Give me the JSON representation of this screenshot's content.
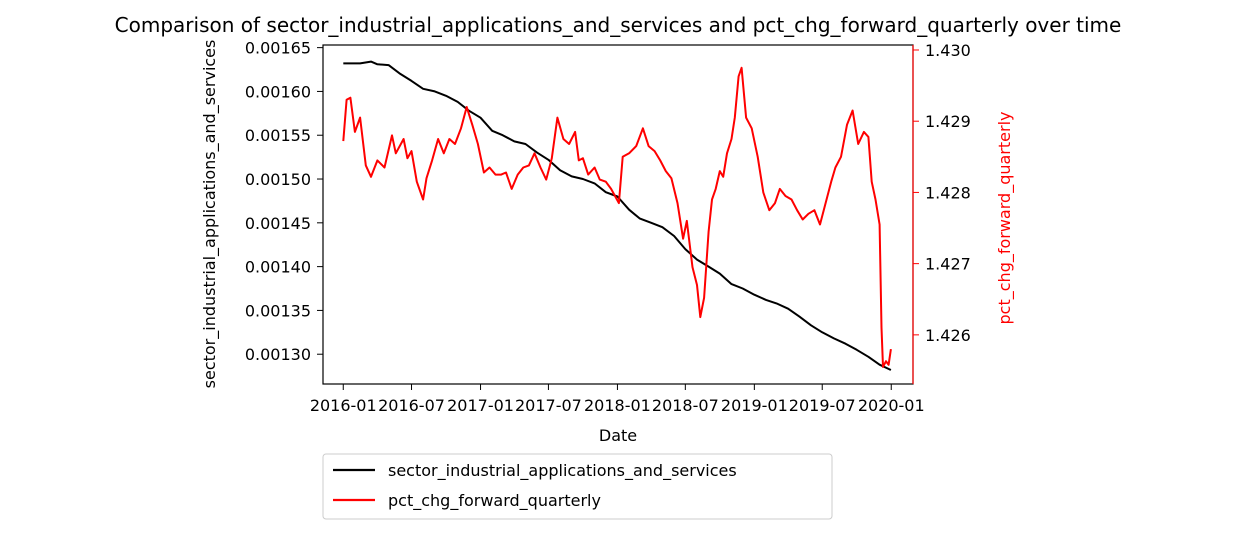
{
  "chart_data": {
    "type": "line",
    "title": "Comparison of sector_industrial_applications_and_services and pct_chg_forward_quarterly over time",
    "xlabel": "Date",
    "x_ticks": [
      "2016-01",
      "2016-07",
      "2017-01",
      "2017-07",
      "2018-01",
      "2018-07",
      "2019-01",
      "2019-07",
      "2020-01"
    ],
    "xlim": [
      "2015-11-08",
      "2020-02-28"
    ],
    "y_left": {
      "label": "sector_industrial_applications_and_services",
      "color": "#000000",
      "ylim": [
        0.001266,
        0.001653
      ],
      "ticks": [
        "0.00130",
        "0.00135",
        "0.00140",
        "0.00145",
        "0.00150",
        "0.00155",
        "0.00160",
        "0.00165"
      ]
    },
    "y_right": {
      "label": "pct_chg_forward_quarterly",
      "color": "#ff0000",
      "ylim": [
        1.42531,
        1.43007
      ],
      "ticks": [
        "1.426",
        "1.427",
        "1.428",
        "1.429",
        "1.430"
      ]
    },
    "legend": {
      "placement": "below-left"
    },
    "series": [
      {
        "name": "sector_industrial_applications_and_services",
        "axis": "left",
        "color": "#000000",
        "points": [
          [
            "2016-01-01",
            0.001632
          ],
          [
            "2016-02-15",
            0.001632
          ],
          [
            "2016-03-15",
            0.001634
          ],
          [
            "2016-04-01",
            0.001631
          ],
          [
            "2016-05-01",
            0.00163
          ],
          [
            "2016-06-01",
            0.00162
          ],
          [
            "2016-07-01",
            0.001612
          ],
          [
            "2016-08-01",
            0.001603
          ],
          [
            "2016-09-01",
            0.0016
          ],
          [
            "2016-10-01",
            0.001595
          ],
          [
            "2016-11-01",
            0.001588
          ],
          [
            "2016-12-01",
            0.001578
          ],
          [
            "2017-01-01",
            0.00157
          ],
          [
            "2017-02-01",
            0.001555
          ],
          [
            "2017-03-01",
            0.00155
          ],
          [
            "2017-04-01",
            0.001543
          ],
          [
            "2017-05-01",
            0.00154
          ],
          [
            "2017-06-01",
            0.00153
          ],
          [
            "2017-07-01",
            0.001522
          ],
          [
            "2017-08-01",
            0.00151
          ],
          [
            "2017-09-01",
            0.001503
          ],
          [
            "2017-10-01",
            0.0015
          ],
          [
            "2017-11-01",
            0.001495
          ],
          [
            "2017-12-01",
            0.001485
          ],
          [
            "2018-01-01",
            0.00148
          ],
          [
            "2018-02-01",
            0.001465
          ],
          [
            "2018-03-01",
            0.001455
          ],
          [
            "2018-04-01",
            0.00145
          ],
          [
            "2018-05-01",
            0.001445
          ],
          [
            "2018-06-01",
            0.001435
          ],
          [
            "2018-07-01",
            0.00142
          ],
          [
            "2018-08-01",
            0.001408
          ],
          [
            "2018-09-01",
            0.0014
          ],
          [
            "2018-10-01",
            0.001392
          ],
          [
            "2018-11-01",
            0.00138
          ],
          [
            "2018-12-01",
            0.001375
          ],
          [
            "2019-01-01",
            0.001368
          ],
          [
            "2019-02-01",
            0.001362
          ],
          [
            "2019-03-01",
            0.001358
          ],
          [
            "2019-04-01",
            0.001352
          ],
          [
            "2019-05-01",
            0.001343
          ],
          [
            "2019-06-01",
            0.001333
          ],
          [
            "2019-07-01",
            0.001325
          ],
          [
            "2019-08-01",
            0.001318
          ],
          [
            "2019-09-01",
            0.001312
          ],
          [
            "2019-10-01",
            0.001305
          ],
          [
            "2019-11-01",
            0.001297
          ],
          [
            "2019-12-01",
            0.001288
          ],
          [
            "2019-12-31",
            0.001282
          ]
        ]
      },
      {
        "name": "pct_chg_forward_quarterly",
        "axis": "right",
        "color": "#ff0000",
        "points": [
          [
            "2016-01-01",
            1.42872
          ],
          [
            "2016-01-10",
            1.4293
          ],
          [
            "2016-01-20",
            1.42933
          ],
          [
            "2016-02-01",
            1.42885
          ],
          [
            "2016-02-15",
            1.42905
          ],
          [
            "2016-03-01",
            1.42838
          ],
          [
            "2016-03-15",
            1.42822
          ],
          [
            "2016-04-01",
            1.42845
          ],
          [
            "2016-04-20",
            1.42835
          ],
          [
            "2016-05-10",
            1.4288
          ],
          [
            "2016-05-20",
            1.42855
          ],
          [
            "2016-06-10",
            1.42875
          ],
          [
            "2016-06-20",
            1.42848
          ],
          [
            "2016-07-01",
            1.42858
          ],
          [
            "2016-07-15",
            1.42815
          ],
          [
            "2016-08-01",
            1.4279
          ],
          [
            "2016-08-10",
            1.4282
          ],
          [
            "2016-08-25",
            1.42845
          ],
          [
            "2016-09-10",
            1.42875
          ],
          [
            "2016-09-25",
            1.42855
          ],
          [
            "2016-10-10",
            1.42875
          ],
          [
            "2016-10-25",
            1.42868
          ],
          [
            "2016-11-10",
            1.4289
          ],
          [
            "2016-11-25",
            1.4292
          ],
          [
            "2016-12-10",
            1.42895
          ],
          [
            "2016-12-25",
            1.42868
          ],
          [
            "2017-01-10",
            1.42828
          ],
          [
            "2017-01-25",
            1.42835
          ],
          [
            "2017-02-10",
            1.42825
          ],
          [
            "2017-02-25",
            1.42825
          ],
          [
            "2017-03-10",
            1.42828
          ],
          [
            "2017-03-25",
            1.42805
          ],
          [
            "2017-04-10",
            1.42825
          ],
          [
            "2017-04-25",
            1.42835
          ],
          [
            "2017-05-10",
            1.42838
          ],
          [
            "2017-05-25",
            1.42855
          ],
          [
            "2017-06-10",
            1.42835
          ],
          [
            "2017-06-25",
            1.42818
          ],
          [
            "2017-07-10",
            1.42848
          ],
          [
            "2017-07-25",
            1.42905
          ],
          [
            "2017-08-10",
            1.42875
          ],
          [
            "2017-08-25",
            1.42868
          ],
          [
            "2017-09-10",
            1.42885
          ],
          [
            "2017-09-20",
            1.42845
          ],
          [
            "2017-10-01",
            1.42848
          ],
          [
            "2017-10-15",
            1.42825
          ],
          [
            "2017-11-01",
            1.42835
          ],
          [
            "2017-11-15",
            1.42818
          ],
          [
            "2017-12-01",
            1.42815
          ],
          [
            "2017-12-15",
            1.42805
          ],
          [
            "2018-01-05",
            1.42785
          ],
          [
            "2018-01-15",
            1.4285
          ],
          [
            "2018-02-01",
            1.42855
          ],
          [
            "2018-02-20",
            1.42865
          ],
          [
            "2018-03-10",
            1.4289
          ],
          [
            "2018-03-25",
            1.42865
          ],
          [
            "2018-04-10",
            1.42858
          ],
          [
            "2018-04-25",
            1.42845
          ],
          [
            "2018-05-10",
            1.4283
          ],
          [
            "2018-05-25",
            1.4282
          ],
          [
            "2018-06-10",
            1.42785
          ],
          [
            "2018-06-25",
            1.42735
          ],
          [
            "2018-07-05",
            1.4276
          ],
          [
            "2018-07-20",
            1.42695
          ],
          [
            "2018-08-01",
            1.4267
          ],
          [
            "2018-08-10",
            1.42625
          ],
          [
            "2018-08-20",
            1.42652
          ],
          [
            "2018-09-01",
            1.42745
          ],
          [
            "2018-09-10",
            1.4279
          ],
          [
            "2018-09-20",
            1.42805
          ],
          [
            "2018-10-01",
            1.4283
          ],
          [
            "2018-10-10",
            1.42822
          ],
          [
            "2018-10-20",
            1.42855
          ],
          [
            "2018-11-01",
            1.42875
          ],
          [
            "2018-11-10",
            1.42905
          ],
          [
            "2018-11-20",
            1.42963
          ],
          [
            "2018-11-28",
            1.42975
          ],
          [
            "2018-12-10",
            1.42905
          ],
          [
            "2018-12-25",
            1.4289
          ],
          [
            "2019-01-10",
            1.4285
          ],
          [
            "2019-01-25",
            1.428
          ],
          [
            "2019-02-10",
            1.42775
          ],
          [
            "2019-02-25",
            1.42785
          ],
          [
            "2019-03-10",
            1.42805
          ],
          [
            "2019-03-25",
            1.42795
          ],
          [
            "2019-04-10",
            1.4279
          ],
          [
            "2019-04-25",
            1.42775
          ],
          [
            "2019-05-10",
            1.42762
          ],
          [
            "2019-05-25",
            1.4277
          ],
          [
            "2019-06-10",
            1.42775
          ],
          [
            "2019-06-25",
            1.42755
          ],
          [
            "2019-07-10",
            1.42785
          ],
          [
            "2019-07-25",
            1.42815
          ],
          [
            "2019-08-05",
            1.42835
          ],
          [
            "2019-08-20",
            1.4285
          ],
          [
            "2019-09-05",
            1.42895
          ],
          [
            "2019-09-20",
            1.42915
          ],
          [
            "2019-10-05",
            1.42868
          ],
          [
            "2019-10-20",
            1.42885
          ],
          [
            "2019-11-01",
            1.42878
          ],
          [
            "2019-11-10",
            1.42815
          ],
          [
            "2019-11-20",
            1.4279
          ],
          [
            "2019-12-01",
            1.42755
          ],
          [
            "2019-12-06",
            1.4261
          ],
          [
            "2019-12-10",
            1.42555
          ],
          [
            "2019-12-18",
            1.42563
          ],
          [
            "2019-12-25",
            1.42558
          ],
          [
            "2019-12-31",
            1.4258
          ]
        ]
      }
    ]
  }
}
